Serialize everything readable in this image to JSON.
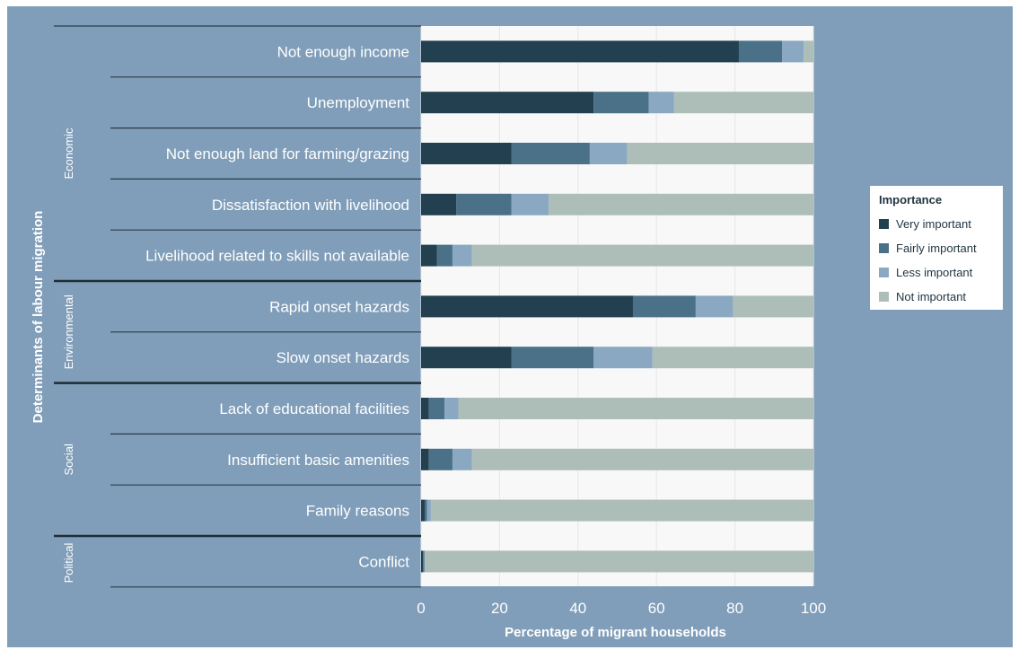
{
  "colors": {
    "background": "#809eb9",
    "plot_background": "#f8f8f8",
    "very_important": "#22404f",
    "fairly_important": "#4a7187",
    "less_important": "#8aa8c1",
    "not_important": "#adbeb9"
  },
  "chart_data": {
    "type": "bar",
    "orientation": "horizontal",
    "stacked": true,
    "xlabel": "Percentage of migrant households",
    "ylabel": "Determinants of labour migration",
    "xlim": [
      0,
      100
    ],
    "xticks": [
      "0",
      "20",
      "40",
      "60",
      "80",
      "100"
    ],
    "grid": true,
    "legend_position": "right",
    "legend_title": "Importance",
    "categories": [
      "Not enough income",
      "Unemployment",
      "Not enough land for farming/grazing",
      "Dissatisfaction with livelihood",
      "Livelihood related to skills not available",
      "Rapid onset hazards",
      "Slow onset hazards",
      "Lack of educational facilities",
      "Insufficient basic amenities",
      "Family reasons",
      "Conflict"
    ],
    "groups": [
      {
        "name": "Economic",
        "start": 0,
        "count": 5
      },
      {
        "name": "Environmental",
        "start": 5,
        "count": 2
      },
      {
        "name": "Social",
        "start": 7,
        "count": 3
      },
      {
        "name": "Political",
        "start": 10,
        "count": 1
      }
    ],
    "series": [
      {
        "name": "Very important",
        "values": [
          81,
          44,
          23,
          9,
          4,
          54,
          23,
          2,
          2,
          1,
          0.5
        ]
      },
      {
        "name": "Fairly important",
        "values": [
          11,
          14,
          20,
          14,
          4,
          16,
          21,
          4,
          6,
          0.5,
          0.3
        ]
      },
      {
        "name": "Less important",
        "values": [
          5.5,
          6.5,
          9.5,
          9.5,
          5,
          9.5,
          15,
          3.5,
          5,
          1,
          0.2
        ]
      },
      {
        "name": "Not important",
        "values": [
          2.5,
          35.5,
          47.5,
          67.5,
          87,
          20.5,
          41,
          90.5,
          87,
          97.5,
          99
        ]
      }
    ]
  }
}
